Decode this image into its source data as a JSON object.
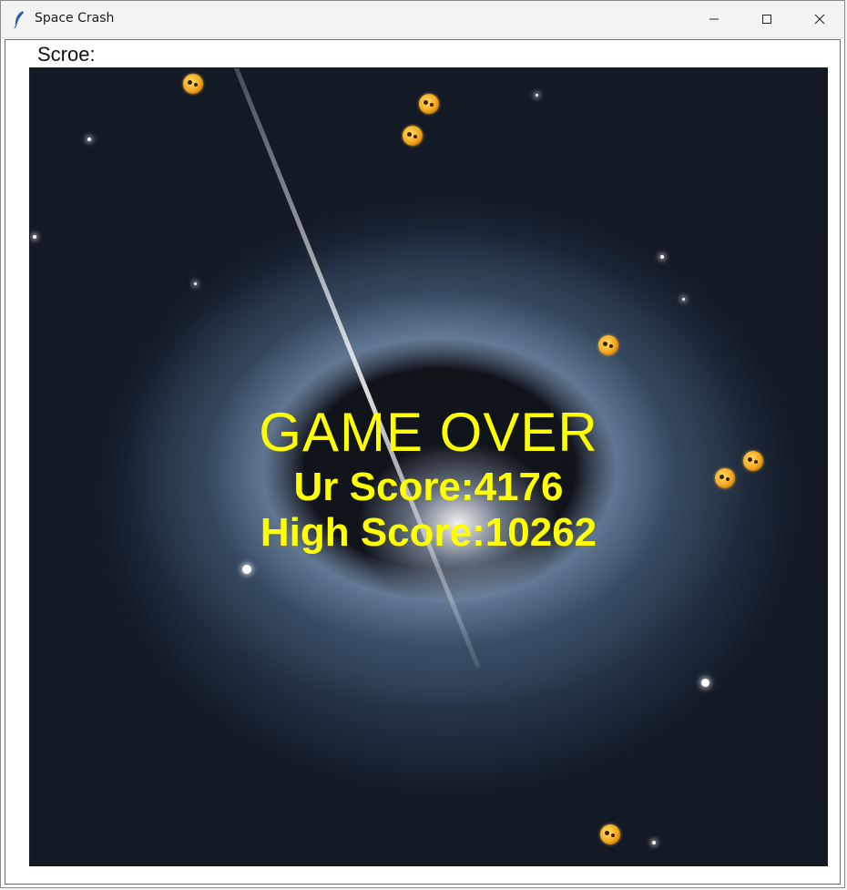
{
  "window": {
    "title": "Space Crash",
    "icon": "feather-icon"
  },
  "controls": {
    "minimize": "minimize-icon",
    "maximize": "maximize-icon",
    "close": "close-icon"
  },
  "hud": {
    "score_label": "Scroe:"
  },
  "game": {
    "game_over": "GAME OVER",
    "your_score": "Ur Score:4176",
    "high_score": "High Score:10262"
  },
  "colors": {
    "overlay_text": "#ffff00",
    "asteroid": "#f4a51c"
  }
}
